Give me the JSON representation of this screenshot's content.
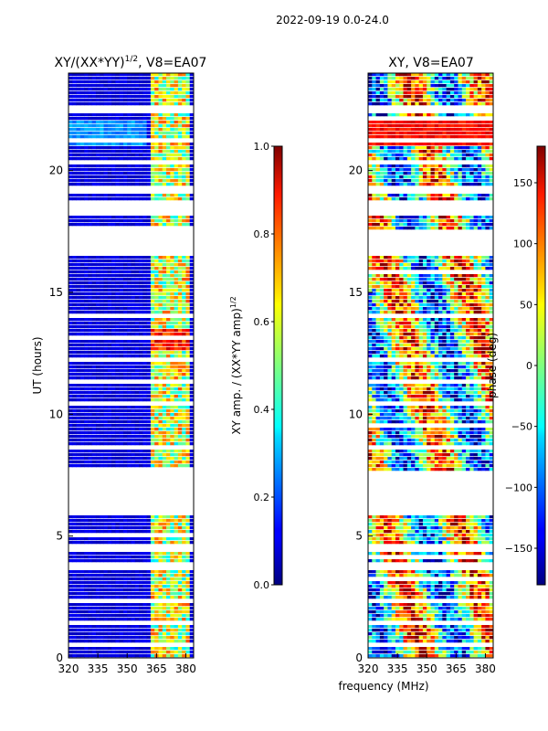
{
  "chart_data": [
    {
      "type": "heatmap",
      "suptitle": "2022-09-19 0.0-24.0",
      "title_base": "XY/(XX*YY)",
      "title_sup": "1/2",
      "title_rest": ", V8=EA07",
      "xlabel": "",
      "ylabel": "UT (hours)",
      "xlim": [
        320,
        384
      ],
      "ylim": [
        0,
        24
      ],
      "xticks": [
        "320",
        "335",
        "350",
        "365",
        "380"
      ],
      "xtick_values": [
        320,
        335,
        350,
        365,
        380
      ],
      "yticks": [
        "0",
        "5",
        "10",
        "15",
        "20"
      ],
      "ytick_values": [
        0,
        5,
        10,
        15,
        20
      ],
      "colorbar": {
        "label_base": "XY amp. / (XX*YY amp)",
        "label_sup": "1/2",
        "range": [
          0,
          1
        ],
        "ticks": [
          "0.0",
          "0.2",
          "0.4",
          "0.6",
          "0.8",
          "1.0"
        ],
        "tick_values": [
          0,
          0.2,
          0.4,
          0.6,
          0.8,
          1.0
        ]
      },
      "data_gaps_hours": [
        [
          5.8,
          7.6
        ],
        [
          16.5,
          17.5
        ],
        [
          19.0,
          19.4
        ],
        [
          18.2,
          18.7
        ],
        [
          22.3,
          22.7
        ],
        [
          4.3,
          4.6
        ],
        [
          3.6,
          3.9
        ]
      ]
    },
    {
      "type": "heatmap",
      "title": "XY, V8=EA07",
      "xlabel": "frequency (MHz)",
      "ylabel": "",
      "xlim": [
        320,
        384
      ],
      "ylim": [
        0,
        24
      ],
      "xticks": [
        "320",
        "335",
        "350",
        "365",
        "380"
      ],
      "xtick_values": [
        320,
        335,
        350,
        365,
        380
      ],
      "yticks": [
        "0",
        "5",
        "10",
        "15",
        "20"
      ],
      "ytick_values": [
        0,
        5,
        10,
        15,
        20
      ],
      "colorbar": {
        "label": "phase (deg)",
        "range": [
          -180,
          180
        ],
        "ticks": [
          "−150",
          "−100",
          "−50",
          "0",
          "50",
          "100",
          "150"
        ],
        "tick_values": [
          -150,
          -100,
          -50,
          0,
          50,
          100,
          150
        ]
      },
      "data_gaps_hours": [
        [
          5.8,
          7.6
        ],
        [
          16.5,
          17.5
        ],
        [
          19.0,
          19.4
        ],
        [
          18.2,
          18.7
        ],
        [
          22.3,
          22.7
        ],
        [
          4.3,
          4.6
        ],
        [
          3.6,
          3.9
        ]
      ]
    }
  ]
}
